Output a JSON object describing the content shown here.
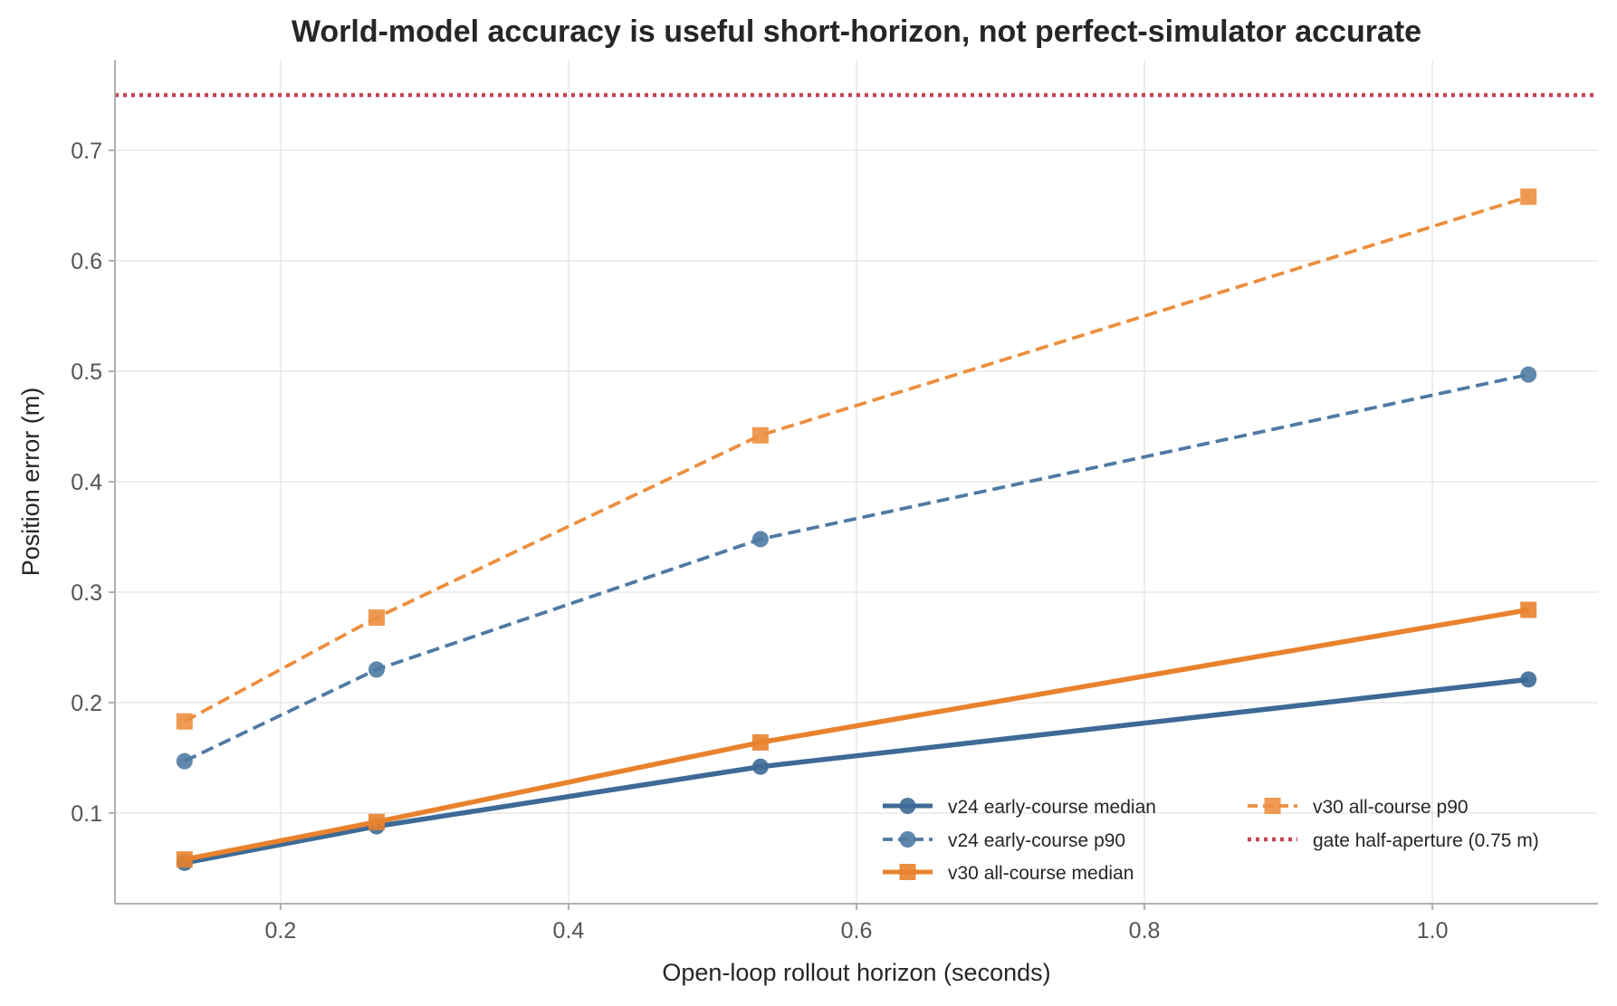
{
  "chart_data": {
    "type": "line",
    "title": "World-model accuracy is useful short-horizon, not perfect-simulator accurate",
    "xlabel": "Open-loop rollout horizon (seconds)",
    "ylabel": "Position error (m)",
    "xlim": [
      0.085,
      1.115
    ],
    "ylim": [
      0.018,
      0.782
    ],
    "xticks": [
      0.2,
      0.4,
      0.6,
      0.8,
      1.0
    ],
    "xtick_labels": [
      "0.2",
      "0.4",
      "0.6",
      "0.8",
      "1.0"
    ],
    "yticks": [
      0.1,
      0.2,
      0.3,
      0.4,
      0.5,
      0.6,
      0.7
    ],
    "ytick_labels": [
      "0.1",
      "0.2",
      "0.3",
      "0.4",
      "0.5",
      "0.6",
      "0.7"
    ],
    "grid": true,
    "legend_position": "lower-right",
    "x": [
      0.1333,
      0.2667,
      0.5333,
      1.0667
    ],
    "series": [
      {
        "name": "v24 early-course median",
        "values": [
          0.055,
          0.088,
          0.142,
          0.221
        ],
        "color": "#3d6a96",
        "style": "solid",
        "marker": "circle"
      },
      {
        "name": "v24 early-course p90",
        "values": [
          0.147,
          0.23,
          0.348,
          0.497
        ],
        "color": "#4f7aa3",
        "style": "dashed",
        "marker": "circle"
      },
      {
        "name": "v30 all-course median",
        "values": [
          0.058,
          0.092,
          0.164,
          0.284
        ],
        "color": "#e8822d",
        "style": "solid",
        "marker": "square"
      },
      {
        "name": "v30 all-course p90",
        "values": [
          0.183,
          0.277,
          0.442,
          0.658
        ],
        "color": "#ec8f3f",
        "style": "dashed",
        "marker": "square"
      }
    ],
    "reference_lines": [
      {
        "name": "gate half-aperture (0.75 m)",
        "y": 0.75,
        "color": "#c44450",
        "style": "dotted"
      }
    ]
  }
}
